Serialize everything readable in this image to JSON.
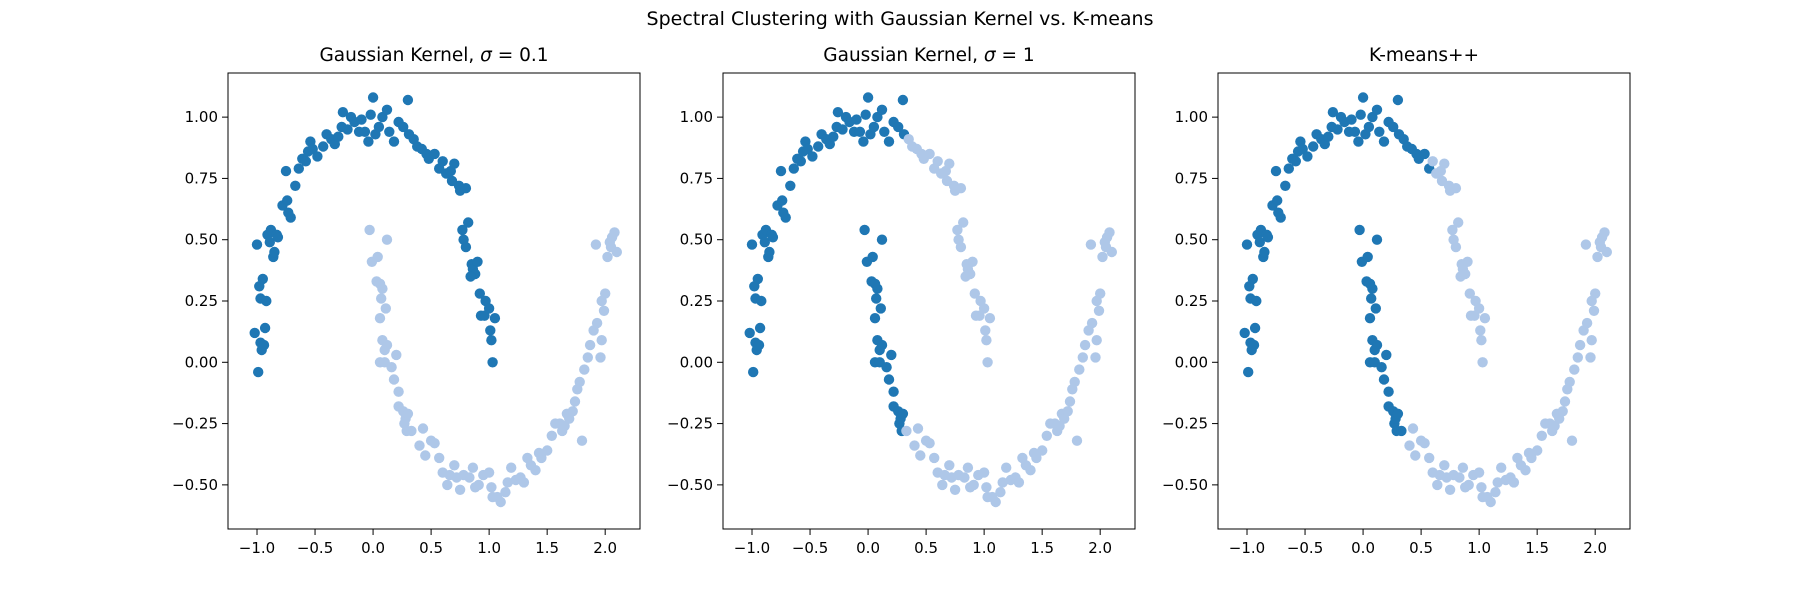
{
  "figure": {
    "suptitle": "Spectral Clustering with Gaussian Kernel vs. K-means"
  },
  "colors": {
    "cluster_a": "#1f77b4",
    "cluster_b": "#aec7e8"
  },
  "chart_data": [
    {
      "type": "scatter",
      "title_prefix": "Gaussian Kernel, ",
      "title_symbol": "σ",
      "title_suffix": " = 0.1",
      "xlabel": "",
      "ylabel": "",
      "xlim": [
        -1.25,
        2.3
      ],
      "ylim": [
        -0.68,
        1.18
      ],
      "xticks": [
        -1.0,
        -0.5,
        0.0,
        0.5,
        1.0,
        1.5,
        2.0
      ],
      "xtick_labels": [
        "−1.0",
        "−0.5",
        "0.0",
        "0.5",
        "1.0",
        "1.5",
        "2.0"
      ],
      "yticks": [
        -0.5,
        -0.25,
        0.0,
        0.25,
        0.5,
        0.75,
        1.0
      ],
      "ytick_labels": [
        "−0.50",
        "−0.25",
        "0.00",
        "0.25",
        "0.50",
        "0.75",
        "1.00"
      ],
      "grid": false,
      "rule": "moon",
      "split_x": null
    },
    {
      "type": "scatter",
      "title_prefix": "Gaussian Kernel, ",
      "title_symbol": "σ",
      "title_suffix": " = 1",
      "xlabel": "",
      "ylabel": "",
      "xlim": [
        -1.25,
        2.3
      ],
      "ylim": [
        -0.68,
        1.18
      ],
      "xticks": [
        -1.0,
        -0.5,
        0.0,
        0.5,
        1.0,
        1.5,
        2.0
      ],
      "xtick_labels": [
        "−1.0",
        "−0.5",
        "0.0",
        "0.5",
        "1.0",
        "1.5",
        "2.0"
      ],
      "yticks": [
        -0.5,
        -0.25,
        0.0,
        0.25,
        0.5,
        0.75,
        1.0
      ],
      "ytick_labels": [
        "−0.50",
        "−0.25",
        "0.00",
        "0.25",
        "0.50",
        "0.75",
        "1.00"
      ],
      "grid": false,
      "rule": "split",
      "split_x": 0.32
    },
    {
      "type": "scatter",
      "title_prefix": "K-means++",
      "title_symbol": "",
      "title_suffix": "",
      "xlabel": "",
      "ylabel": "",
      "xlim": [
        -1.25,
        2.3
      ],
      "ylim": [
        -0.68,
        1.18
      ],
      "xticks": [
        -1.0,
        -0.5,
        0.0,
        0.5,
        1.0,
        1.5,
        2.0
      ],
      "xtick_labels": [
        "−1.0",
        "−0.5",
        "0.0",
        "0.5",
        "1.0",
        "1.5",
        "2.0"
      ],
      "yticks": [
        -0.5,
        -0.25,
        0.0,
        0.25,
        0.5,
        0.75,
        1.0
      ],
      "ytick_labels": [
        "−0.50",
        "−0.25",
        "0.00",
        "0.25",
        "0.50",
        "0.75",
        "1.00"
      ],
      "grid": false,
      "rule": "split",
      "split_x": 0.58
    }
  ],
  "points": {
    "upper_moon": [
      [
        -1.0,
        0.48
      ],
      [
        -0.98,
        0.31
      ],
      [
        -0.97,
        0.26
      ],
      [
        -0.95,
        0.34
      ],
      [
        -0.99,
        -0.04
      ],
      [
        -1.02,
        0.12
      ],
      [
        -0.97,
        0.08
      ],
      [
        -0.96,
        0.05
      ],
      [
        -0.94,
        0.07
      ],
      [
        -0.93,
        0.14
      ],
      [
        -0.92,
        0.25
      ],
      [
        -0.91,
        0.52
      ],
      [
        -0.89,
        0.49
      ],
      [
        -0.88,
        0.54
      ],
      [
        -0.86,
        0.43
      ],
      [
        -0.83,
        0.52
      ],
      [
        -0.82,
        0.51
      ],
      [
        -0.78,
        0.64
      ],
      [
        -0.75,
        0.78
      ],
      [
        -0.73,
        0.61
      ],
      [
        -0.74,
        0.66
      ],
      [
        -0.71,
        0.59
      ],
      [
        -0.67,
        0.72
      ],
      [
        -0.64,
        0.79
      ],
      [
        -0.61,
        0.83
      ],
      [
        -0.58,
        0.82
      ],
      [
        -0.56,
        0.86
      ],
      [
        -0.54,
        0.9
      ],
      [
        -0.52,
        0.87
      ],
      [
        -0.48,
        0.84
      ],
      [
        -0.43,
        0.88
      ],
      [
        -0.4,
        0.93
      ],
      [
        -0.36,
        0.91
      ],
      [
        -0.33,
        0.89
      ],
      [
        -0.3,
        0.92
      ],
      [
        -0.27,
        0.96
      ],
      [
        -0.26,
        1.02
      ],
      [
        -0.22,
        0.95
      ],
      [
        -0.19,
        1.0
      ],
      [
        -0.16,
        0.98
      ],
      [
        -0.12,
        0.94
      ],
      [
        -0.1,
        0.99
      ],
      [
        -0.07,
        0.94
      ],
      [
        -0.04,
        0.9
      ],
      [
        -0.02,
        1.01
      ],
      [
        0.0,
        1.08
      ],
      [
        0.02,
        0.93
      ],
      [
        0.05,
        0.96
      ],
      [
        0.08,
        1.0
      ],
      [
        0.12,
        1.03
      ],
      [
        0.14,
        0.94
      ],
      [
        0.18,
        0.9
      ],
      [
        0.22,
        0.98
      ],
      [
        0.26,
        0.96
      ],
      [
        0.3,
        1.07
      ],
      [
        0.31,
        0.93
      ],
      [
        0.35,
        0.91
      ],
      [
        0.38,
        0.88
      ],
      [
        0.42,
        0.87
      ],
      [
        0.46,
        0.85
      ],
      [
        0.48,
        0.83
      ],
      [
        0.53,
        0.85
      ],
      [
        0.57,
        0.79
      ],
      [
        0.6,
        0.82
      ],
      [
        0.63,
        0.77
      ],
      [
        0.67,
        0.78
      ],
      [
        0.7,
        0.81
      ],
      [
        0.74,
        0.72
      ],
      [
        0.75,
        0.7
      ],
      [
        0.8,
        0.71
      ],
      [
        0.77,
        0.54
      ],
      [
        0.82,
        0.57
      ],
      [
        0.78,
        0.5
      ],
      [
        0.8,
        0.47
      ],
      [
        0.85,
        0.4
      ],
      [
        0.86,
        0.38
      ],
      [
        0.88,
        0.36
      ],
      [
        0.9,
        0.41
      ],
      [
        0.92,
        0.28
      ],
      [
        0.93,
        0.19
      ],
      [
        0.96,
        0.19
      ],
      [
        0.97,
        0.25
      ],
      [
        1.0,
        0.22
      ],
      [
        1.01,
        0.13
      ],
      [
        1.02,
        0.09
      ],
      [
        1.03,
        0.0
      ],
      [
        1.05,
        0.18
      ],
      [
        0.84,
        0.35
      ],
      [
        0.68,
        0.74
      ],
      [
        -0.85,
        0.45
      ]
    ],
    "lower_moon": [
      [
        -0.03,
        0.54
      ],
      [
        -0.01,
        0.41
      ],
      [
        0.04,
        0.43
      ],
      [
        0.03,
        0.33
      ],
      [
        0.06,
        0.32
      ],
      [
        0.08,
        0.3
      ],
      [
        0.06,
        0.18
      ],
      [
        0.07,
        0.26
      ],
      [
        0.11,
        0.22
      ],
      [
        0.12,
        0.5
      ],
      [
        0.08,
        0.09
      ],
      [
        0.1,
        0.05
      ],
      [
        0.12,
        0.07
      ],
      [
        0.06,
        0.0
      ],
      [
        0.1,
        0.0
      ],
      [
        0.16,
        -0.02
      ],
      [
        0.18,
        -0.07
      ],
      [
        0.2,
        0.03
      ],
      [
        0.22,
        -0.12
      ],
      [
        0.22,
        -0.18
      ],
      [
        0.26,
        -0.2
      ],
      [
        0.27,
        -0.25
      ],
      [
        0.29,
        -0.28
      ],
      [
        0.28,
        -0.23
      ],
      [
        0.3,
        -0.21
      ],
      [
        0.33,
        -0.28
      ],
      [
        0.4,
        -0.34
      ],
      [
        0.43,
        -0.27
      ],
      [
        0.45,
        -0.38
      ],
      [
        0.5,
        -0.32
      ],
      [
        0.53,
        -0.33
      ],
      [
        0.57,
        -0.39
      ],
      [
        0.6,
        -0.45
      ],
      [
        0.64,
        -0.5
      ],
      [
        0.66,
        -0.46
      ],
      [
        0.7,
        -0.42
      ],
      [
        0.72,
        -0.47
      ],
      [
        0.75,
        -0.52
      ],
      [
        0.78,
        -0.46
      ],
      [
        0.83,
        -0.47
      ],
      [
        0.86,
        -0.43
      ],
      [
        0.88,
        -0.51
      ],
      [
        0.91,
        -0.5
      ],
      [
        0.95,
        -0.46
      ],
      [
        1.0,
        -0.45
      ],
      [
        1.02,
        -0.51
      ],
      [
        1.03,
        -0.55
      ],
      [
        1.07,
        -0.55
      ],
      [
        1.1,
        -0.57
      ],
      [
        1.14,
        -0.53
      ],
      [
        1.16,
        -0.49
      ],
      [
        1.19,
        -0.43
      ],
      [
        1.23,
        -0.48
      ],
      [
        1.27,
        -0.47
      ],
      [
        1.3,
        -0.49
      ],
      [
        1.33,
        -0.39
      ],
      [
        1.36,
        -0.42
      ],
      [
        1.4,
        -0.44
      ],
      [
        1.43,
        -0.37
      ],
      [
        1.45,
        -0.39
      ],
      [
        1.5,
        -0.36
      ],
      [
        1.54,
        -0.3
      ],
      [
        1.57,
        -0.25
      ],
      [
        1.61,
        -0.25
      ],
      [
        1.63,
        -0.28
      ],
      [
        1.65,
        -0.26
      ],
      [
        1.67,
        -0.21
      ],
      [
        1.69,
        -0.23
      ],
      [
        1.72,
        -0.2
      ],
      [
        1.74,
        -0.16
      ],
      [
        1.76,
        -0.11
      ],
      [
        1.78,
        -0.08
      ],
      [
        1.82,
        -0.03
      ],
      [
        1.8,
        -0.32
      ],
      [
        1.85,
        0.02
      ],
      [
        1.87,
        0.07
      ],
      [
        1.9,
        0.13
      ],
      [
        1.93,
        0.16
      ],
      [
        1.96,
        0.02
      ],
      [
        1.97,
        0.09
      ],
      [
        1.97,
        0.25
      ],
      [
        1.99,
        0.21
      ],
      [
        2.0,
        0.28
      ],
      [
        2.02,
        0.43
      ],
      [
        2.04,
        0.49
      ],
      [
        2.06,
        0.51
      ],
      [
        2.05,
        0.47
      ],
      [
        2.08,
        0.53
      ],
      [
        2.1,
        0.45
      ],
      [
        1.92,
        0.48
      ]
    ]
  }
}
